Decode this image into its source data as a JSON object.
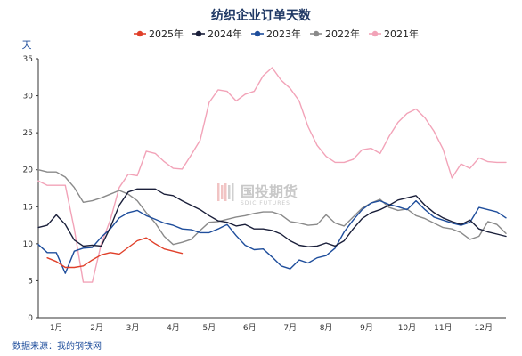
{
  "chart_data": {
    "type": "line",
    "title": "纺织企业订单天数",
    "ylabel": "天",
    "ylim": [
      0,
      35
    ],
    "yticks": [
      0,
      5,
      10,
      15,
      20,
      25,
      30,
      35
    ],
    "xlim": [
      0,
      52
    ],
    "month_labels": [
      "1月",
      "2月",
      "3月",
      "4月",
      "5月",
      "6月",
      "7月",
      "8月",
      "9月",
      "10月",
      "11月",
      "12月"
    ],
    "month_centers": [
      2,
      6.5,
      10.5,
      15,
      19,
      23.5,
      28,
      32,
      36.5,
      41,
      45,
      49.5
    ],
    "legend_position": "top",
    "grid": false,
    "source": "数据来源：我的钢铁网",
    "watermark": {
      "name": "国投期货",
      "sub": "SDIC FUTURES"
    },
    "series": [
      {
        "name": "2025年",
        "color": "#e0402a",
        "width": 1.4,
        "x": [
          1,
          2,
          3,
          4,
          5,
          6,
          7,
          8,
          9,
          10,
          11,
          12,
          13,
          14,
          15,
          16
        ],
        "y": [
          8.1,
          7.6,
          6.8,
          6.8,
          7.0,
          7.8,
          8.5,
          8.8,
          8.6,
          9.5,
          10.4,
          10.8,
          10.0,
          9.3,
          9.0,
          8.7
        ]
      },
      {
        "name": "2024年",
        "color": "#1a1f3a",
        "width": 1.4,
        "x": [
          0,
          1,
          2,
          3,
          4,
          5,
          6,
          7,
          8,
          9,
          10,
          11,
          12,
          13,
          14,
          15,
          16,
          17,
          18,
          19,
          20,
          21,
          22,
          23,
          24,
          25,
          26,
          27,
          28,
          29,
          30,
          31,
          32,
          33,
          34,
          35,
          36,
          37,
          38,
          39,
          40,
          41,
          42,
          43,
          44,
          45,
          46,
          47,
          48,
          49,
          50,
          51,
          52
        ],
        "y": [
          12.2,
          12.5,
          13.9,
          12.6,
          10.5,
          9.7,
          9.8,
          9.7,
          12.2,
          15.2,
          17.0,
          17.4,
          17.4,
          17.4,
          16.7,
          16.5,
          15.8,
          15.2,
          14.6,
          13.8,
          13.1,
          12.9,
          12.4,
          12.6,
          12.0,
          12.0,
          11.8,
          11.3,
          10.4,
          9.8,
          9.6,
          9.7,
          10.1,
          9.7,
          10.4,
          12.0,
          13.4,
          14.2,
          14.6,
          15.2,
          15.9,
          16.2,
          16.5,
          15.2,
          14.2,
          13.5,
          13.0,
          12.6,
          13.2,
          12.0,
          11.6,
          11.3,
          11.0
        ]
      },
      {
        "name": "2023年",
        "color": "#1f4e9c",
        "width": 1.4,
        "x": [
          0,
          1,
          2,
          3,
          4,
          5,
          6,
          7,
          8,
          9,
          10,
          11,
          12,
          13,
          14,
          15,
          16,
          17,
          18,
          19,
          20,
          21,
          22,
          23,
          24,
          25,
          26,
          27,
          28,
          29,
          30,
          31,
          32,
          33,
          34,
          35,
          36,
          37,
          38,
          39,
          40,
          41,
          42,
          43,
          44,
          45,
          46,
          47,
          48,
          49,
          50,
          51,
          52
        ],
        "y": [
          9.9,
          8.8,
          8.8,
          6.0,
          9.0,
          9.4,
          9.5,
          10.9,
          12.0,
          13.5,
          14.2,
          14.5,
          13.8,
          13.3,
          12.8,
          12.5,
          12.0,
          11.9,
          11.5,
          11.5,
          12.0,
          12.6,
          11.1,
          9.8,
          9.2,
          9.3,
          8.2,
          7.0,
          6.6,
          7.8,
          7.4,
          8.1,
          8.4,
          9.4,
          11.6,
          13.2,
          14.6,
          15.5,
          15.8,
          15.3,
          15.0,
          14.6,
          15.8,
          14.6,
          13.6,
          13.2,
          12.8,
          12.5,
          12.9,
          14.9,
          14.6,
          14.3,
          13.5
        ]
      },
      {
        "name": "2022年",
        "color": "#8a8a8a",
        "width": 1.4,
        "x": [
          0,
          1,
          2,
          3,
          4,
          5,
          6,
          7,
          8,
          9,
          10,
          11,
          12,
          13,
          14,
          15,
          16,
          17,
          18,
          19,
          20,
          21,
          22,
          23,
          24,
          25,
          26,
          27,
          28,
          29,
          30,
          31,
          32,
          33,
          34,
          35,
          36,
          37,
          38,
          39,
          40,
          41,
          42,
          43,
          44,
          45,
          46,
          47,
          48,
          49,
          50,
          51,
          52
        ],
        "y": [
          20.0,
          19.7,
          19.7,
          19.0,
          17.6,
          15.6,
          15.8,
          16.2,
          16.7,
          17.2,
          16.7,
          15.8,
          14.2,
          12.8,
          11.0,
          9.9,
          10.2,
          10.6,
          11.8,
          12.9,
          13.0,
          13.3,
          13.6,
          13.8,
          14.1,
          14.3,
          14.3,
          13.9,
          13.0,
          12.8,
          12.5,
          12.6,
          13.9,
          12.8,
          12.4,
          13.6,
          14.8,
          15.5,
          16.0,
          14.9,
          14.5,
          14.7,
          13.8,
          13.4,
          12.8,
          12.2,
          12.0,
          11.5,
          10.6,
          11.0,
          13.0,
          12.6,
          11.4
        ]
      },
      {
        "name": "2021年",
        "color": "#f2a3b8",
        "width": 1.4,
        "x": [
          0,
          1,
          2,
          3,
          4,
          5,
          6,
          7,
          8,
          9,
          10,
          11,
          12,
          13,
          14,
          15,
          16,
          17,
          18,
          19,
          20,
          21,
          22,
          23,
          24,
          25,
          26,
          27,
          28,
          29,
          30,
          31,
          32,
          33,
          34,
          35,
          36,
          37,
          38,
          39,
          40,
          41,
          42,
          43,
          44,
          45,
          46,
          47,
          48,
          49,
          50,
          51,
          52
        ],
        "y": [
          18.5,
          17.9,
          17.9,
          17.9,
          12.0,
          4.8,
          4.8,
          10.0,
          13.2,
          17.6,
          19.4,
          19.2,
          22.5,
          22.2,
          21.1,
          20.2,
          20.1,
          22.0,
          24.0,
          29.1,
          30.8,
          30.6,
          29.3,
          30.2,
          30.6,
          32.7,
          33.8,
          32.1,
          31.0,
          29.3,
          25.8,
          23.3,
          21.8,
          21.0,
          21.0,
          21.4,
          22.7,
          22.9,
          22.2,
          24.5,
          26.4,
          27.6,
          28.2,
          27.0,
          25.2,
          22.8,
          18.9,
          20.8,
          20.2,
          21.6,
          21.1,
          21.0,
          21.0
        ]
      }
    ]
  }
}
